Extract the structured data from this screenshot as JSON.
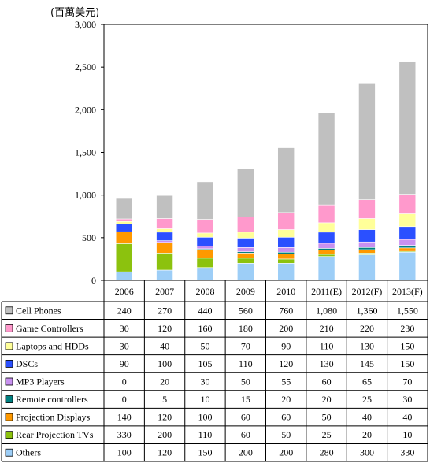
{
  "chart_data": {
    "type": "bar",
    "stacked": true,
    "unit_label": "(百萬美元)",
    "ylim": [
      0,
      3000
    ],
    "yticks": [
      "0",
      "500",
      "1,000",
      "1,500",
      "2,000",
      "2,500",
      "3,000"
    ],
    "categories": [
      "2006",
      "2007",
      "2008",
      "2009",
      "2010",
      "2011(E)",
      "2012(F)",
      "2013(F)"
    ],
    "series": [
      {
        "name": "Others",
        "color": "#9dcef7",
        "values": [
          100,
          120,
          150,
          200,
          200,
          280,
          300,
          330
        ],
        "labels": [
          "100",
          "120",
          "150",
          "200",
          "200",
          "280",
          "300",
          "330"
        ]
      },
      {
        "name": "Rear Projection TVs",
        "color": "#8cc20e",
        "values": [
          330,
          200,
          110,
          60,
          50,
          25,
          20,
          10
        ],
        "labels": [
          "330",
          "200",
          "110",
          "60",
          "50",
          "25",
          "20",
          "10"
        ]
      },
      {
        "name": "Projection Displays",
        "color": "#ff9900",
        "values": [
          140,
          120,
          100,
          60,
          60,
          50,
          40,
          40
        ],
        "labels": [
          "140",
          "120",
          "100",
          "60",
          "60",
          "50",
          "40",
          "40"
        ]
      },
      {
        "name": "Remote controllers",
        "color": "#008080",
        "values": [
          0,
          5,
          10,
          15,
          20,
          20,
          25,
          30
        ],
        "labels": [
          "0",
          "5",
          "10",
          "15",
          "20",
          "20",
          "25",
          "30"
        ]
      },
      {
        "name": "MP3 Players",
        "color": "#c891f0",
        "values": [
          0,
          20,
          30,
          50,
          55,
          60,
          65,
          70
        ],
        "labels": [
          "0",
          "20",
          "30",
          "50",
          "55",
          "60",
          "65",
          "70"
        ]
      },
      {
        "name": "DSCs",
        "color": "#2b50ff",
        "values": [
          90,
          100,
          105,
          110,
          120,
          130,
          145,
          150
        ],
        "labels": [
          "90",
          "100",
          "105",
          "110",
          "120",
          "130",
          "145",
          "150"
        ]
      },
      {
        "name": "Laptops and HDDs",
        "color": "#ffff99",
        "values": [
          30,
          40,
          50,
          70,
          90,
          110,
          130,
          150
        ],
        "labels": [
          "30",
          "40",
          "50",
          "70",
          "90",
          "110",
          "130",
          "150"
        ]
      },
      {
        "name": "Game Controllers",
        "color": "#ff99cc",
        "values": [
          30,
          120,
          160,
          180,
          200,
          210,
          220,
          230
        ],
        "labels": [
          "30",
          "120",
          "160",
          "180",
          "200",
          "210",
          "220",
          "230"
        ]
      },
      {
        "name": "Cell Phones",
        "color": "#c0c0c0",
        "values": [
          240,
          270,
          440,
          560,
          760,
          1080,
          1360,
          1550
        ],
        "labels": [
          "240",
          "270",
          "440",
          "560",
          "760",
          "1,080",
          "1,360",
          "1,550"
        ]
      }
    ]
  }
}
